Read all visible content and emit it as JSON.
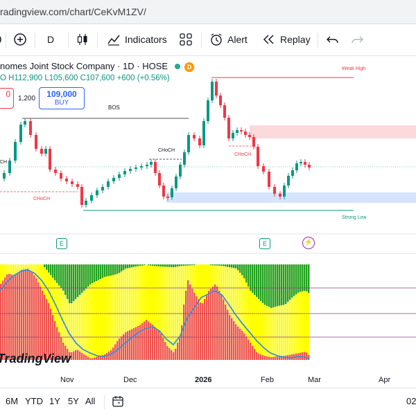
{
  "browser": {
    "url": "radingview.com/chart/CeKvM1ZV/"
  },
  "toolbar": {
    "add_label": "+",
    "interval": "D",
    "indicators_label": "Indicators",
    "alert_label": "Alert",
    "replay_label": "Replay"
  },
  "legend": {
    "title": "nomes Joint Stock Company · 1D · HOSE",
    "badge": "D",
    "ohlc_prefix": "O",
    "high": "H112,900",
    "low": "L105,600",
    "close": "C107,600",
    "change": "+600 (+0.56%)"
  },
  "trade": {
    "sell_price": "0",
    "spread": "1,200",
    "buy_price": "109,000",
    "buy_label": "BUY"
  },
  "annotations": {
    "weak_high": "Weak High",
    "strong_low": "Strong Low",
    "bos": "BOS",
    "choch": "CHoCH",
    "choch_left": "CHoCH",
    "choch_right": "CHoCH",
    "ch_edge": "CH"
  },
  "events": {
    "earnings": "E",
    "flash": "⚡"
  },
  "watermark": "TradingView",
  "xaxis": [
    "Nov",
    "Dec",
    "2026",
    "Feb",
    "Mar",
    "Apr"
  ],
  "timeframes": [
    "6M",
    "YTD",
    "1Y",
    "5Y",
    "All"
  ],
  "bottom_right": "02",
  "colors": {
    "up": "#089981",
    "down": "#f23645",
    "osc_yellow": "#ffff00",
    "osc_green": "#22a020",
    "osc_red": "#ef5350",
    "osc_line": "#3d8fd6",
    "supply_zone": "#fcd9dc",
    "demand_zone": "#d6e4fb"
  }
}
